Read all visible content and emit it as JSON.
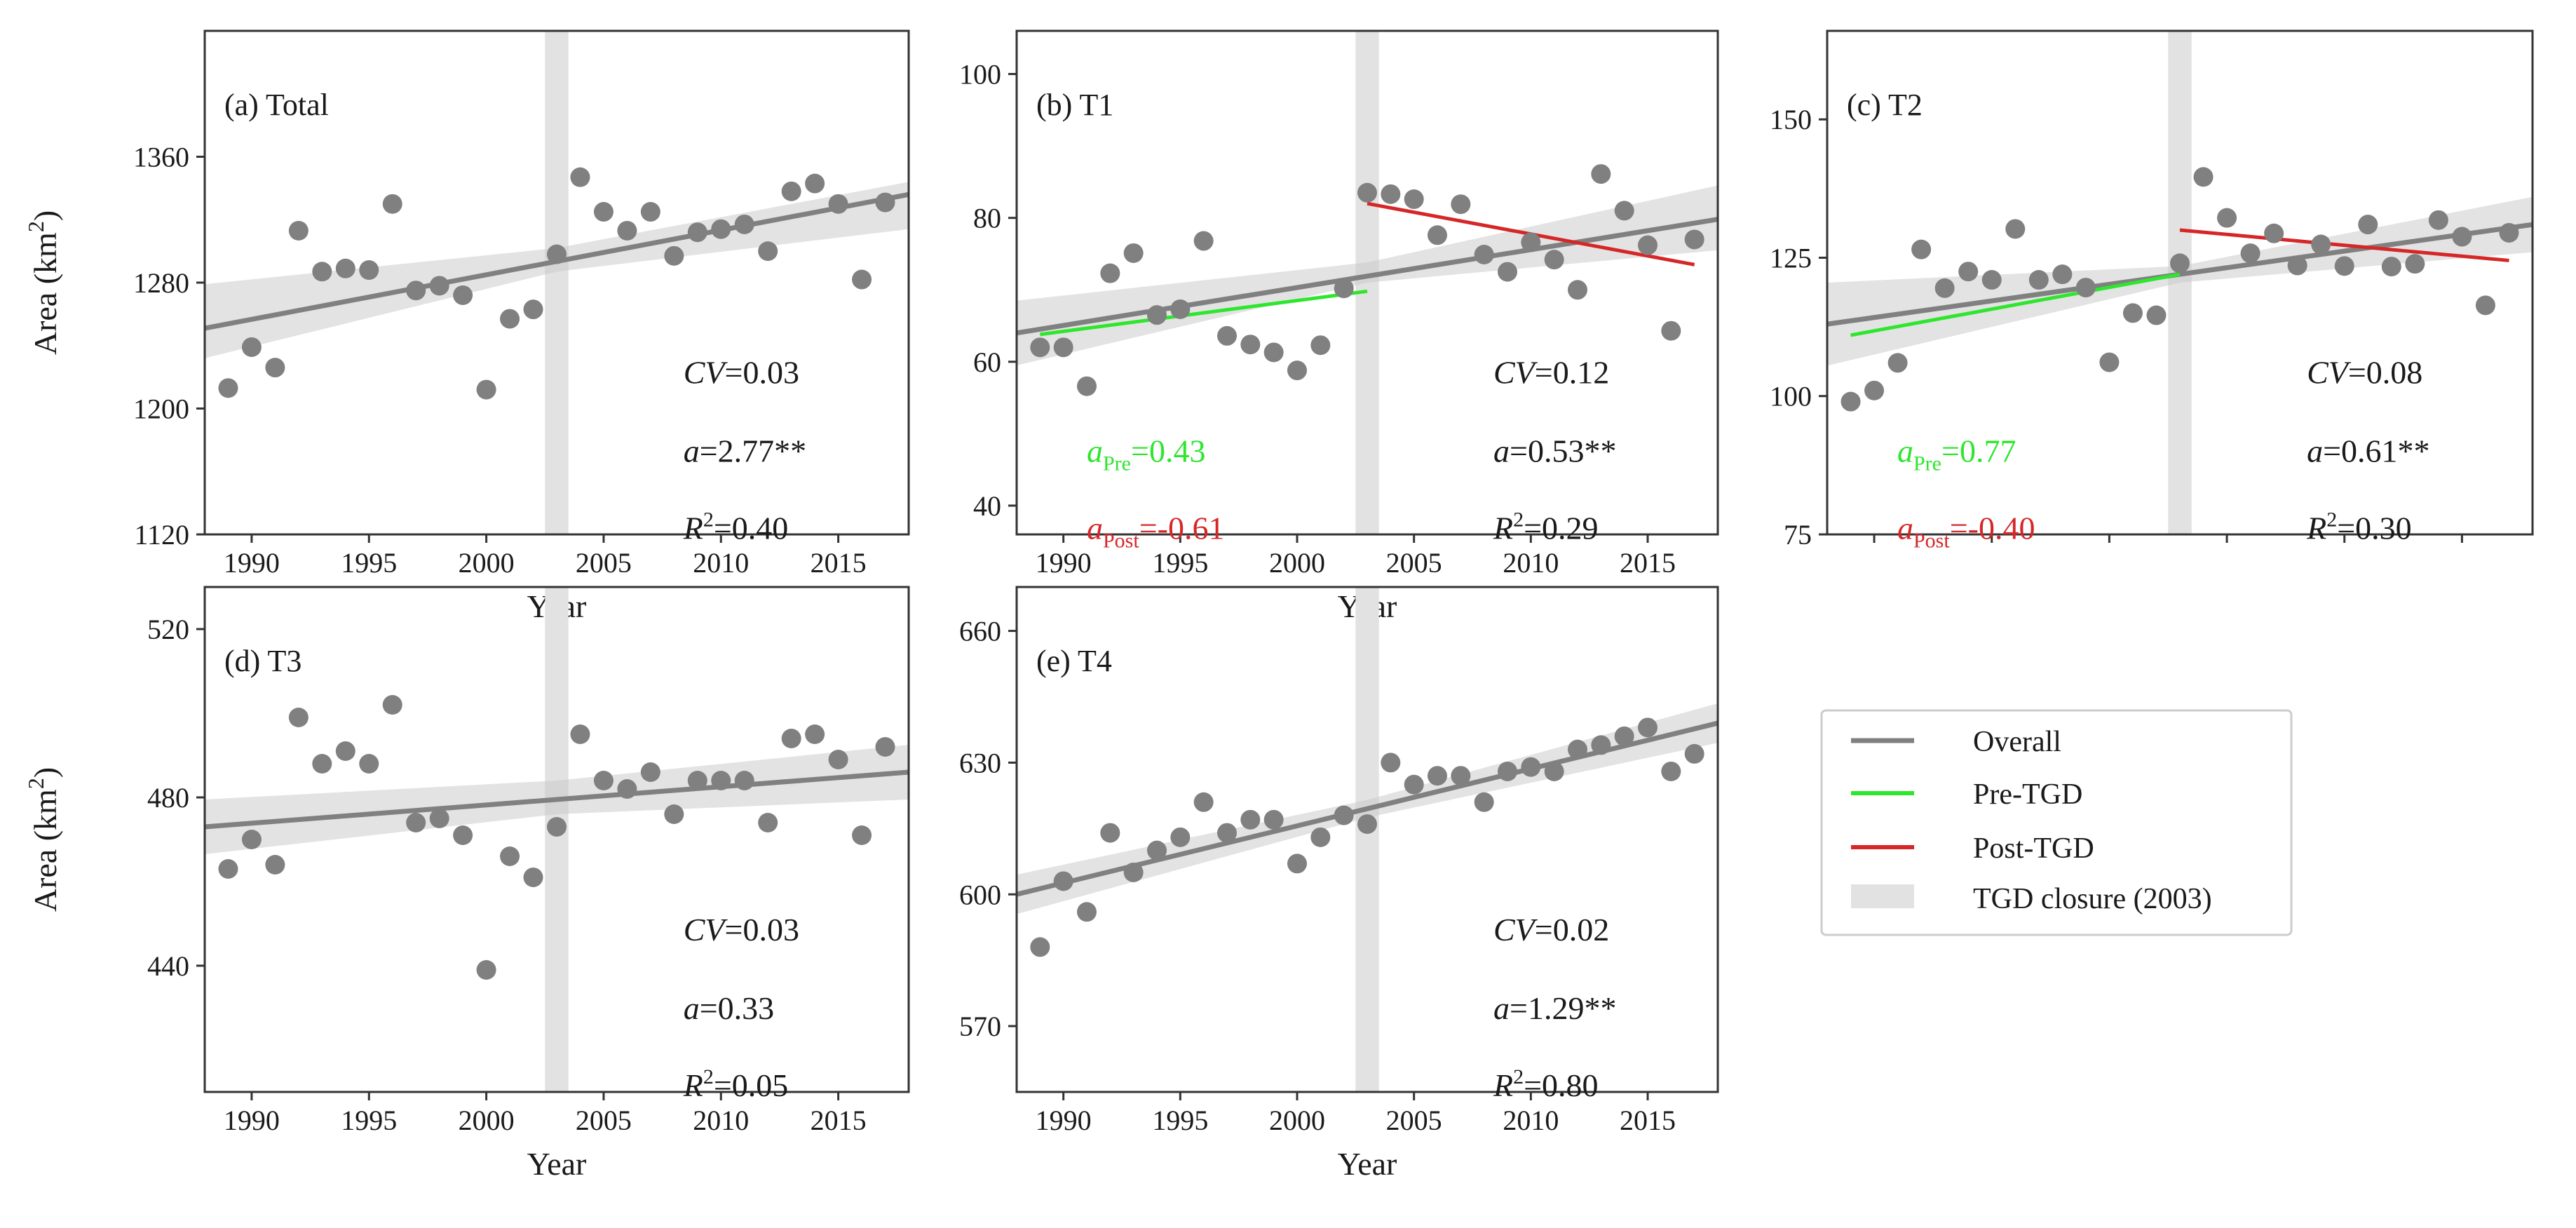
{
  "figure": {
    "ylabel": "Area (km",
    "ylabel_sup": "2",
    "ylabel_close": ")",
    "xlabel": "Year"
  },
  "legend": {
    "overall": "Overall",
    "pre": "Pre-TGD",
    "post": "Post-TGD",
    "closure": "TGD closure (2003)",
    "colors": {
      "overall": "#808080",
      "pre": "#2ee62e",
      "post": "#d62728",
      "closure": "#e2e2e2"
    }
  },
  "chart_data": [
    {
      "id": "a",
      "type": "scatter",
      "title": "(a) Total",
      "closure_year": 2003,
      "xlim": [
        1988,
        2018
      ],
      "ylim": [
        1120,
        1440
      ],
      "yticks": [
        1120,
        1200,
        1280,
        1360
      ],
      "xticks": [
        1990,
        1995,
        2000,
        2005,
        2010,
        2015
      ],
      "show_xticklabels": true,
      "show_xlabel": true,
      "show_ylabel": true,
      "x": [
        1989,
        1990,
        1991,
        1992,
        1993,
        1994,
        1995,
        1996,
        1997,
        1998,
        1999,
        2000,
        2001,
        2002,
        2003,
        2004,
        2005,
        2006,
        2007,
        2008,
        2009,
        2010,
        2011,
        2012,
        2013,
        2014,
        2015,
        2016,
        2017
      ],
      "y": [
        1213,
        1239,
        1226,
        1313,
        1287,
        1289,
        1288,
        1330,
        1275,
        1278,
        1272,
        1212,
        1257,
        1263,
        1298,
        1347,
        1325,
        1313,
        1325,
        1297,
        1312,
        1314,
        1317,
        1300,
        1338,
        1343,
        1330,
        1282,
        1331
      ],
      "overall": {
        "x": [
          1988,
          2018
        ],
        "y": [
          1251,
          1336
        ]
      },
      "band": {
        "x": [
          1988,
          2003,
          2018
        ],
        "lower": [
          1232,
          1287,
          1314
        ],
        "upper": [
          1279,
          1302,
          1344
        ]
      },
      "stats": {
        "cv_label": "CV",
        "cv_value": "=0.03",
        "a_label": "a",
        "a_value": "=2.77**",
        "r_label": "R",
        "r_sup": "2",
        "r_value": "=0.40"
      }
    },
    {
      "id": "b",
      "type": "scatter",
      "title": "(b) T1",
      "closure_year": 2003,
      "xlim": [
        1988,
        2018
      ],
      "ylim": [
        36,
        106
      ],
      "yticks": [
        40,
        60,
        80,
        100
      ],
      "xticks": [
        1990,
        1995,
        2000,
        2005,
        2010,
        2015
      ],
      "show_xticklabels": true,
      "show_xlabel": true,
      "show_ylabel": false,
      "x": [
        1989,
        1990,
        1991,
        1992,
        1993,
        1994,
        1995,
        1996,
        1997,
        1998,
        1999,
        2000,
        2001,
        2002,
        2003,
        2004,
        2005,
        2006,
        2007,
        2008,
        2009,
        2010,
        2011,
        2012,
        2013,
        2014,
        2015,
        2016,
        2017
      ],
      "y": [
        62,
        62,
        56.6,
        72.3,
        75.1,
        66.5,
        67.3,
        76.8,
        63.6,
        62.4,
        61.3,
        58.8,
        62.3,
        70.2,
        83.5,
        83.3,
        82.6,
        77.6,
        81.9,
        74.9,
        72.5,
        76.6,
        74.2,
        70.0,
        86.1,
        81.0,
        76.2,
        64.3,
        77.0
      ],
      "overall": {
        "x": [
          1988,
          2018
        ],
        "y": [
          64.0,
          79.8
        ]
      },
      "band": {
        "x": [
          1988,
          2003,
          2018
        ],
        "lower": [
          59.5,
          71.0,
          75.5
        ],
        "upper": [
          68.5,
          73.8,
          84.5
        ]
      },
      "pre": {
        "x": [
          1989,
          2003
        ],
        "y": [
          63.8,
          69.8
        ]
      },
      "post": {
        "x": [
          2003,
          2017
        ],
        "y": [
          82.0,
          73.5
        ]
      },
      "stats": {
        "cv_label": "CV",
        "cv_value": "=0.12",
        "a_label": "a",
        "a_value": "=0.53**",
        "r_label": "R",
        "r_sup": "2",
        "r_value": "=0.29",
        "pre_label": "a",
        "pre_sub": "Pre",
        "pre_value": "=0.43",
        "post_label": "a",
        "post_sub": "Post",
        "post_value": "=-0.61"
      }
    },
    {
      "id": "c",
      "type": "scatter",
      "title": "(c) T2",
      "closure_year": 2003,
      "xlim": [
        1988,
        2018
      ],
      "ylim": [
        75,
        166
      ],
      "yticks": [
        75,
        100,
        125,
        150
      ],
      "xticks": [
        1990,
        1995,
        2000,
        2005,
        2010,
        2015
      ],
      "show_xticklabels": false,
      "show_xlabel": false,
      "show_ylabel": false,
      "x": [
        1989,
        1990,
        1991,
        1992,
        1993,
        1994,
        1995,
        1996,
        1997,
        1998,
        1999,
        2000,
        2001,
        2002,
        2003,
        2004,
        2005,
        2006,
        2007,
        2008,
        2009,
        2010,
        2011,
        2012,
        2013,
        2014,
        2015,
        2016,
        2017
      ],
      "y": [
        99,
        101,
        106,
        126.5,
        119.5,
        122.5,
        121,
        130.2,
        121,
        122,
        119.6,
        106.1,
        115,
        114.6,
        124,
        139.6,
        132.2,
        125.8,
        129.4,
        123.6,
        127.4,
        123.5,
        131,
        123.4,
        123.9,
        131.8,
        128.8,
        116.4,
        129.5
      ],
      "overall": {
        "x": [
          1988,
          2018
        ],
        "y": [
          113.0,
          131.0
        ]
      },
      "band": {
        "x": [
          1988,
          2003,
          2018
        ],
        "lower": [
          105.5,
          120.5,
          126.0
        ],
        "upper": [
          120.5,
          123.5,
          136.0
        ]
      },
      "pre": {
        "x": [
          1989,
          2003
        ],
        "y": [
          111.0,
          122.0
        ]
      },
      "post": {
        "x": [
          2003,
          2017
        ],
        "y": [
          130.0,
          124.5
        ]
      },
      "stats": {
        "cv_label": "CV",
        "cv_value": "=0.08",
        "a_label": "a",
        "a_value": "=0.61**",
        "r_label": "R",
        "r_sup": "2",
        "r_value": "=0.30",
        "pre_label": "a",
        "pre_sub": "Pre",
        "pre_value": "=0.77",
        "post_label": "a",
        "post_sub": "Post",
        "post_value": "=-0.40"
      }
    },
    {
      "id": "d",
      "type": "scatter",
      "title": "(d) T3",
      "closure_year": 2003,
      "xlim": [
        1988,
        2018
      ],
      "ylim": [
        410,
        530
      ],
      "yticks": [
        440,
        480,
        520
      ],
      "xticks": [
        1990,
        1995,
        2000,
        2005,
        2010,
        2015
      ],
      "show_xticklabels": true,
      "show_xlabel": true,
      "show_ylabel": true,
      "x": [
        1989,
        1990,
        1991,
        1992,
        1993,
        1994,
        1995,
        1996,
        1997,
        1998,
        1999,
        2000,
        2001,
        2002,
        2003,
        2004,
        2005,
        2006,
        2007,
        2008,
        2009,
        2010,
        2011,
        2012,
        2013,
        2014,
        2015,
        2016,
        2017
      ],
      "y": [
        463,
        470,
        464,
        499,
        488,
        491,
        488,
        502,
        474,
        475,
        471,
        439,
        466,
        461,
        473,
        495,
        484,
        482,
        486,
        476,
        484,
        484,
        484,
        474,
        494,
        495,
        489,
        471,
        492
      ],
      "overall": {
        "x": [
          1988,
          2018
        ],
        "y": [
          473.0,
          486.0
        ]
      },
      "band": {
        "x": [
          1988,
          2003,
          2018
        ],
        "lower": [
          466.5,
          476.0,
          479.5
        ],
        "upper": [
          479.5,
          484.0,
          492.5
        ]
      },
      "stats": {
        "cv_label": "CV",
        "cv_value": "=0.03",
        "a_label": "a",
        "a_value": "=0.33",
        "r_label": "R",
        "r_sup": "2",
        "r_value": "=0.05"
      }
    },
    {
      "id": "e",
      "type": "scatter",
      "title": "(e) T4",
      "closure_year": 2003,
      "xlim": [
        1988,
        2018
      ],
      "ylim": [
        555,
        670
      ],
      "yticks": [
        570,
        600,
        630,
        660
      ],
      "xticks": [
        1990,
        1995,
        2000,
        2005,
        2010,
        2015
      ],
      "show_xticklabels": true,
      "show_xlabel": true,
      "show_ylabel": false,
      "x": [
        1989,
        1990,
        1991,
        1992,
        1993,
        1994,
        1995,
        1996,
        1997,
        1998,
        1999,
        2000,
        2001,
        2002,
        2003,
        2004,
        2005,
        2006,
        2007,
        2008,
        2009,
        2010,
        2011,
        2012,
        2013,
        2014,
        2015,
        2016,
        2017
      ],
      "y": [
        588,
        603,
        596,
        614,
        605,
        610,
        613,
        621,
        614,
        617,
        617,
        607,
        613,
        618,
        616,
        630,
        625,
        627,
        627,
        621,
        628,
        629,
        628,
        633,
        634,
        636,
        638,
        628,
        632
      ],
      "overall": {
        "x": [
          1988,
          2018
        ],
        "y": [
          600.0,
          639.0
        ]
      },
      "band": {
        "x": [
          1988,
          2003,
          2018
        ],
        "lower": [
          595.5,
          617.5,
          634.5
        ],
        "upper": [
          604.5,
          621.5,
          643.5
        ]
      },
      "stats": {
        "cv_label": "CV",
        "cv_value": "=0.02",
        "a_label": "a",
        "a_value": "=1.29**",
        "r_label": "R",
        "r_sup": "2",
        "r_value": "=0.80"
      }
    }
  ]
}
